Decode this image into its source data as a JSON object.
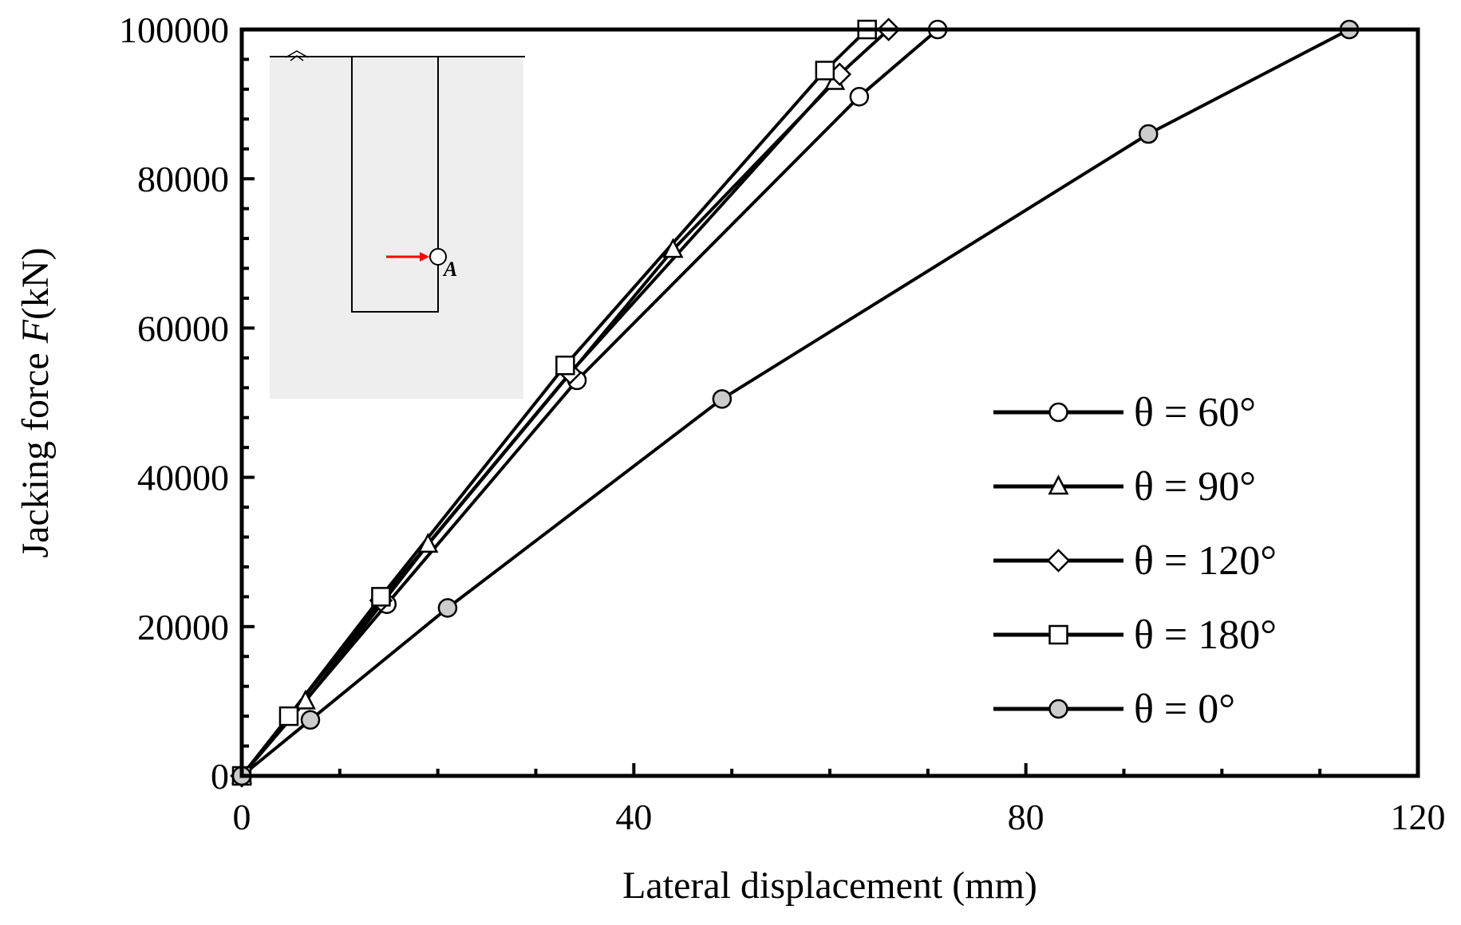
{
  "chart_data": {
    "type": "line",
    "xlabel": "Lateral displacement (mm)",
    "ylabel_prefix": "Jacking force ",
    "ylabel_italic": "F",
    "ylabel_suffix": "(kN)",
    "xlim": [
      0,
      120
    ],
    "ylim": [
      0,
      100000
    ],
    "x_ticks": [
      0,
      40,
      80,
      120
    ],
    "y_ticks": [
      0,
      20000,
      40000,
      60000,
      80000,
      100000
    ],
    "grid": false,
    "legend_position": "right",
    "series": [
      {
        "name": "θ = 60°",
        "marker": "circle",
        "fill": "#ffffff",
        "x": [
          0,
          14.8,
          34.2,
          63.0,
          71.0
        ],
        "y": [
          0,
          23000,
          53000,
          91000,
          100000
        ]
      },
      {
        "name": "θ = 90°",
        "marker": "triangle",
        "fill": "#ffffff",
        "x": [
          0,
          6.5,
          19.0,
          44.0,
          60.5
        ],
        "y": [
          0,
          10000,
          31000,
          70500,
          93000
        ]
      },
      {
        "name": "θ = 120°",
        "marker": "diamond",
        "fill": "#ffffff",
        "x": [
          0,
          14.2,
          33.5,
          61.0,
          66.0
        ],
        "y": [
          0,
          23500,
          54000,
          94000,
          100000
        ]
      },
      {
        "name": "θ = 180°",
        "marker": "square",
        "fill": "#ffffff",
        "x": [
          0,
          4.8,
          14.2,
          33.0,
          59.5,
          63.8
        ],
        "y": [
          0,
          8000,
          24000,
          55000,
          94500,
          100000
        ]
      },
      {
        "name": "θ = 0°",
        "marker": "circle",
        "fill": "#cccccc",
        "x": [
          0,
          7.0,
          21.0,
          49.0,
          92.5,
          113.0
        ],
        "y": [
          0,
          7500,
          22500,
          50500,
          86000,
          100000
        ]
      }
    ],
    "inset": {
      "point_label": "A",
      "arrow_color": "#ff0000"
    }
  }
}
